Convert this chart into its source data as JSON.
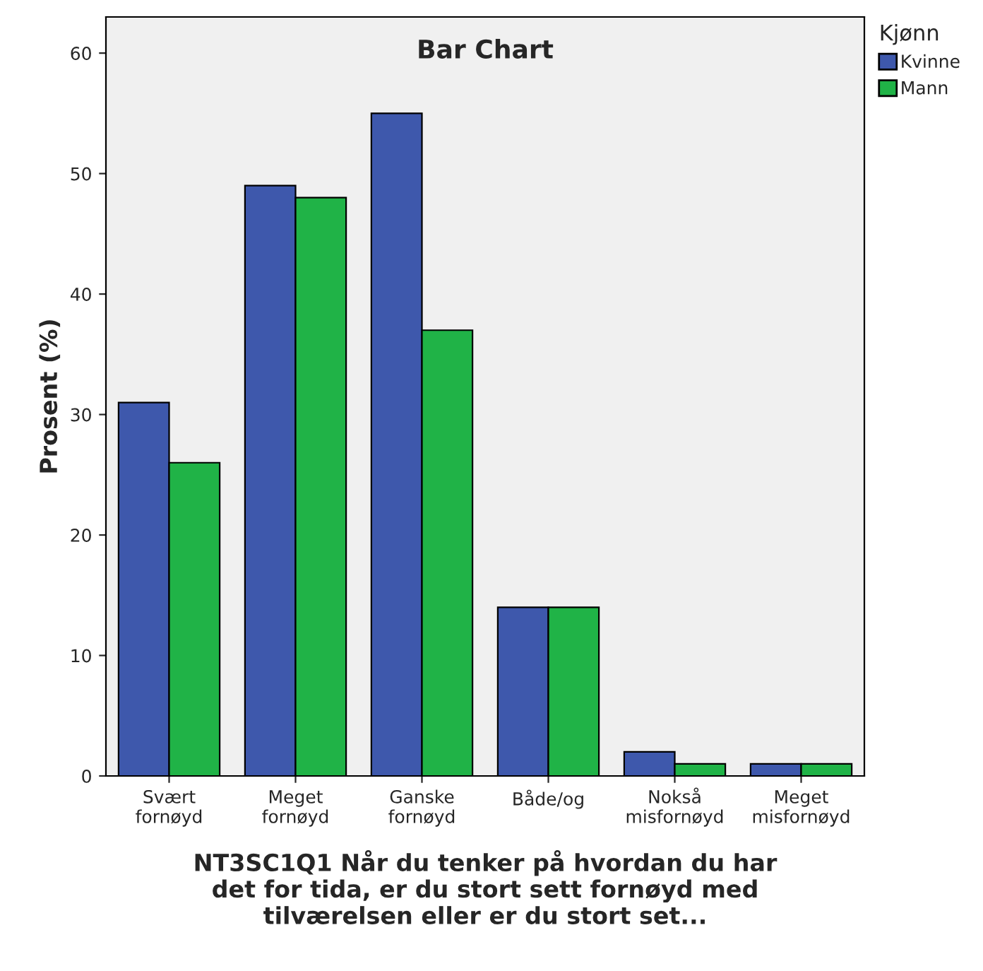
{
  "chart_data": {
    "type": "bar",
    "title": "Bar Chart",
    "xlabel": "NT3SC1Q1 Når du tenker på hvordan du har\ndet for tida, er du stort sett fornøyd med\ntilværelsen eller er du stort set...",
    "ylabel": "Prosent (%)",
    "legend_title": "Kjønn",
    "categories": [
      "Svært\nfornøyd",
      "Meget\nfornøyd",
      "Ganske\nfornøyd",
      "Både/og",
      "Nokså\nmisfornøyd",
      "Meget\nmisfornøyd"
    ],
    "series": [
      {
        "name": "Kvinne",
        "color": "#3e58ac",
        "values": [
          31,
          49,
          55,
          14,
          2,
          1
        ]
      },
      {
        "name": "Mann",
        "color": "#20b347",
        "values": [
          26,
          48,
          37,
          14,
          1,
          1
        ]
      }
    ],
    "ylim": [
      0,
      63
    ],
    "yticks": [
      0,
      10,
      20,
      30,
      40,
      50,
      60
    ],
    "grid": false,
    "legend": "top right"
  }
}
